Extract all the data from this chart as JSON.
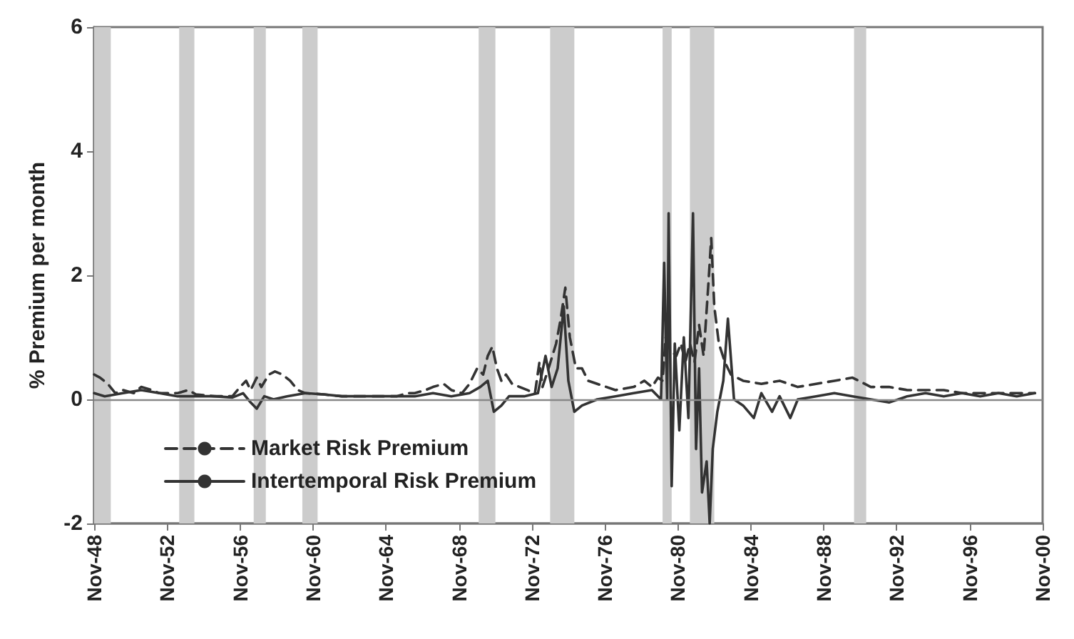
{
  "chart_data": {
    "type": "line",
    "ylabel": "% Premium per month",
    "xlim": [
      "1948-11",
      "2000-11"
    ],
    "xticks": [
      {
        "value": "1948-11",
        "label": "Nov-48"
      },
      {
        "value": "1952-11",
        "label": "Nov-52"
      },
      {
        "value": "1956-11",
        "label": "Nov-56"
      },
      {
        "value": "1960-11",
        "label": "Nov-60"
      },
      {
        "value": "1964-11",
        "label": "Nov-64"
      },
      {
        "value": "1968-11",
        "label": "Nov-68"
      },
      {
        "value": "1972-11",
        "label": "Nov-72"
      },
      {
        "value": "1976-11",
        "label": "Nov-76"
      },
      {
        "value": "1980-11",
        "label": "Nov-80"
      },
      {
        "value": "1984-11",
        "label": "Nov-84"
      },
      {
        "value": "1988-11",
        "label": "Nov-88"
      },
      {
        "value": "1992-11",
        "label": "Nov-92"
      },
      {
        "value": "1996-11",
        "label": "Nov-96"
      },
      {
        "value": "2000-11",
        "label": "Nov-00"
      }
    ],
    "ylim": [
      -2,
      6
    ],
    "yticks": [
      -2,
      0,
      2,
      4,
      6
    ],
    "grid": false,
    "legend": "bottom left",
    "marker": "none",
    "series": [
      {
        "name": "Market Risk Premium",
        "color": "#333333",
        "line_style": "dashed",
        "x": [
          "1948-11",
          "1949-03",
          "1949-08",
          "1950-01",
          "1950-06",
          "1951-01",
          "1951-06",
          "1952-01",
          "1952-06",
          "1953-06",
          "1954-01",
          "1954-06",
          "1955-06",
          "1956-06",
          "1956-11",
          "1957-03",
          "1957-06",
          "1957-10",
          "1958-01",
          "1958-06",
          "1958-10",
          "1959-03",
          "1959-08",
          "1960-01",
          "1960-06",
          "1961-06",
          "1962-06",
          "1963-06",
          "1964-06",
          "1965-06",
          "1966-01",
          "1966-06",
          "1967-01",
          "1967-06",
          "1968-01",
          "1968-06",
          "1969-01",
          "1969-06",
          "1969-11",
          "1970-03",
          "1970-06",
          "1970-09",
          "1970-12",
          "1971-03",
          "1971-06",
          "1971-10",
          "1972-03",
          "1972-08",
          "1973-01",
          "1973-04",
          "1973-06",
          "1973-10",
          "1974-03",
          "1974-06",
          "1974-09",
          "1974-12",
          "1975-04",
          "1975-08",
          "1975-12",
          "1976-06",
          "1977-06",
          "1978-06",
          "1979-01",
          "1979-06",
          "1979-10",
          "1980-01",
          "1980-03",
          "1980-06",
          "1980-10",
          "1981-01",
          "1981-04",
          "1981-07",
          "1981-10",
          "1982-01",
          "1982-04",
          "1982-07",
          "1982-09",
          "1982-11",
          "1983-02",
          "1983-06",
          "1983-10",
          "1984-06",
          "1985-06",
          "1986-06",
          "1987-06",
          "1988-06",
          "1989-06",
          "1990-06",
          "1991-06",
          "1992-06",
          "1993-06",
          "1994-06",
          "1995-06",
          "1996-06",
          "1997-06",
          "1998-06",
          "1999-06",
          "2000-06"
        ],
        "values": [
          0.4,
          0.35,
          0.25,
          0.1,
          0.15,
          0.1,
          0.2,
          0.15,
          0.1,
          0.1,
          0.15,
          0.08,
          0.05,
          0.05,
          0.2,
          0.3,
          0.15,
          0.35,
          0.2,
          0.4,
          0.45,
          0.4,
          0.3,
          0.15,
          0.1,
          0.08,
          0.05,
          0.05,
          0.05,
          0.05,
          0.1,
          0.1,
          0.15,
          0.2,
          0.25,
          0.15,
          0.1,
          0.25,
          0.5,
          0.4,
          0.7,
          0.85,
          0.5,
          0.3,
          0.4,
          0.25,
          0.2,
          0.15,
          0.1,
          0.6,
          0.2,
          0.5,
          0.9,
          1.3,
          1.8,
          1.0,
          0.5,
          0.5,
          0.3,
          0.25,
          0.15,
          0.2,
          0.3,
          0.2,
          0.35,
          0.3,
          1.0,
          0.8,
          0.7,
          0.9,
          0.6,
          0.9,
          0.6,
          1.2,
          0.7,
          1.8,
          2.6,
          1.5,
          0.9,
          0.6,
          0.4,
          0.3,
          0.25,
          0.3,
          0.2,
          0.25,
          0.3,
          0.35,
          0.2,
          0.2,
          0.15,
          0.15,
          0.15,
          0.1,
          0.1,
          0.1,
          0.1,
          0.1
        ]
      },
      {
        "name": "Intertemporal Risk Premium",
        "color": "#333333",
        "line_style": "solid",
        "x": [
          "1948-11",
          "1949-06",
          "1950-06",
          "1951-06",
          "1952-06",
          "1953-06",
          "1954-06",
          "1955-06",
          "1956-06",
          "1957-01",
          "1957-06",
          "1957-10",
          "1958-03",
          "1958-09",
          "1959-06",
          "1960-06",
          "1961-06",
          "1962-06",
          "1963-06",
          "1964-06",
          "1965-06",
          "1966-06",
          "1967-06",
          "1968-06",
          "1969-06",
          "1970-01",
          "1970-06",
          "1970-10",
          "1971-03",
          "1971-08",
          "1972-06",
          "1973-03",
          "1973-08",
          "1973-12",
          "1974-04",
          "1974-08",
          "1974-11",
          "1975-03",
          "1975-08",
          "1976-06",
          "1977-06",
          "1978-06",
          "1979-06",
          "1979-12",
          "1980-02",
          "1980-04",
          "1980-05",
          "1980-07",
          "1980-09",
          "1980-12",
          "1981-03",
          "1981-06",
          "1981-09",
          "1981-11",
          "1982-01",
          "1982-03",
          "1982-06",
          "1982-08",
          "1982-10",
          "1983-01",
          "1983-05",
          "1983-08",
          "1983-12",
          "1984-06",
          "1985-01",
          "1985-06",
          "1986-01",
          "1986-06",
          "1987-01",
          "1987-06",
          "1988-06",
          "1989-06",
          "1990-06",
          "1991-06",
          "1992-06",
          "1993-06",
          "1994-06",
          "1995-06",
          "1996-06",
          "1997-06",
          "1998-06",
          "1999-06",
          "2000-06"
        ],
        "values": [
          0.1,
          0.05,
          0.1,
          0.15,
          0.1,
          0.05,
          0.05,
          0.05,
          0.03,
          0.1,
          -0.05,
          -0.15,
          0.05,
          0.0,
          0.05,
          0.1,
          0.08,
          0.05,
          0.05,
          0.05,
          0.05,
          0.05,
          0.1,
          0.05,
          0.1,
          0.2,
          0.3,
          -0.2,
          -0.1,
          0.05,
          0.05,
          0.1,
          0.7,
          0.2,
          0.5,
          1.5,
          0.3,
          -0.2,
          -0.1,
          0.0,
          0.05,
          0.1,
          0.15,
          0.0,
          2.2,
          0.0,
          3.0,
          -1.4,
          0.9,
          -0.5,
          1.0,
          -0.3,
          3.0,
          -0.8,
          0.5,
          -1.5,
          -1.0,
          -2.0,
          -0.8,
          -0.2,
          0.3,
          1.3,
          0.0,
          -0.1,
          -0.3,
          0.1,
          -0.2,
          0.05,
          -0.3,
          0.0,
          0.05,
          0.1,
          0.05,
          0.0,
          -0.05,
          0.05,
          0.1,
          0.05,
          0.1,
          0.05,
          0.1,
          0.05,
          0.1
        ]
      }
    ],
    "ref_lines": [
      {
        "axis": "y",
        "value": 0,
        "color": "#888888"
      }
    ],
    "bands": [
      {
        "axis": "x",
        "from": "1948-11",
        "to": "1949-10",
        "color": "#cccccc"
      },
      {
        "axis": "x",
        "from": "1953-07",
        "to": "1954-05",
        "color": "#cccccc"
      },
      {
        "axis": "x",
        "from": "1957-08",
        "to": "1958-04",
        "color": "#cccccc"
      },
      {
        "axis": "x",
        "from": "1960-04",
        "to": "1961-02",
        "color": "#cccccc"
      },
      {
        "axis": "x",
        "from": "1969-12",
        "to": "1970-11",
        "color": "#cccccc"
      },
      {
        "axis": "x",
        "from": "1973-11",
        "to": "1975-03",
        "color": "#cccccc"
      },
      {
        "axis": "x",
        "from": "1980-01",
        "to": "1980-07",
        "color": "#cccccc"
      },
      {
        "axis": "x",
        "from": "1981-07",
        "to": "1982-11",
        "color": "#cccccc"
      },
      {
        "axis": "x",
        "from": "1990-07",
        "to": "1991-03",
        "color": "#cccccc"
      }
    ]
  }
}
